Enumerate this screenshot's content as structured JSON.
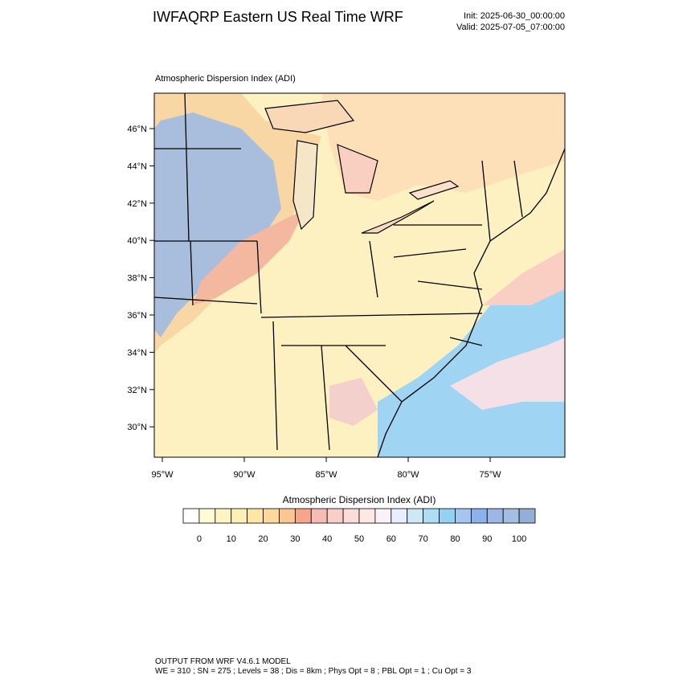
{
  "header": {
    "title": "IWFAQRP Eastern US Real Time WRF",
    "init": "Init: 2025-06-30_00:00:00",
    "valid": "Valid: 2025-07-05_07:00:00"
  },
  "map": {
    "title": "Atmospheric Dispersion Index   (ADI)",
    "lat_labels": [
      "46°N",
      "44°N",
      "42°N",
      "40°N",
      "38°N",
      "36°N",
      "34°N",
      "32°N",
      "30°N"
    ],
    "lon_labels": [
      "95°W",
      "90°W",
      "85°W",
      "80°W",
      "75°W"
    ]
  },
  "colorbar": {
    "title": "Atmospheric Dispersion Index  (ADI)",
    "labels": [
      "0",
      "10",
      "20",
      "30",
      "40",
      "50",
      "60",
      "70",
      "80",
      "90",
      "100"
    ],
    "colors": [
      "#ffffff",
      "#fffbd6",
      "#fff5c4",
      "#ffefb4",
      "#ffe6a4",
      "#fdd89c",
      "#fbc690",
      "#f5a68c",
      "#f6bcb4",
      "#f9cec8",
      "#fbdcd8",
      "#fde8e6",
      "#fbf2f8",
      "#e8eefc",
      "#cfe8f8",
      "#aedef6",
      "#94d2f4",
      "#a4c6f0",
      "#8cb2ec",
      "#9cb6e6",
      "#a4bee2",
      "#94aed6"
    ]
  },
  "footer": {
    "line1": "OUTPUT FROM WRF V4.6.1 MODEL",
    "line2": "WE = 310 ; SN = 275 ; Levels = 38 ; Dis = 8km ; Phys Opt = 8 ; PBL Opt = 1 ; Cu Opt = 3"
  }
}
